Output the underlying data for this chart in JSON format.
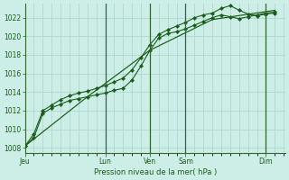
{
  "xlabel": "Pression niveau de la mer( hPa )",
  "background_color": "#cceee6",
  "grid_color": "#aad4cc",
  "line_color": "#1a5c1a",
  "text_color": "#1a5c1a",
  "spine_color": "#336633",
  "ylim": [
    1007.5,
    1023.5
  ],
  "yticks": [
    1008,
    1010,
    1012,
    1014,
    1016,
    1018,
    1020,
    1022
  ],
  "series1_x": [
    0,
    6,
    12,
    18,
    24,
    30,
    36,
    42,
    48,
    54,
    60,
    66,
    72,
    78,
    84,
    90,
    96,
    102,
    108,
    114,
    120,
    126,
    132,
    138,
    144,
    150,
    156,
    162,
    168
  ],
  "series1_y": [
    1008.2,
    1009.1,
    1011.7,
    1012.3,
    1012.7,
    1013.1,
    1013.3,
    1013.5,
    1013.7,
    1013.9,
    1014.2,
    1014.4,
    1015.3,
    1016.8,
    1018.5,
    1019.8,
    1020.3,
    1020.5,
    1020.8,
    1021.2,
    1021.6,
    1022.0,
    1022.3,
    1022.1,
    1021.9,
    1022.1,
    1022.3,
    1022.5,
    1022.6
  ],
  "series2_x": [
    0,
    6,
    12,
    18,
    24,
    30,
    36,
    42,
    48,
    54,
    60,
    66,
    72,
    78,
    84,
    90,
    96,
    102,
    108,
    114,
    120,
    126,
    132,
    138,
    144,
    150,
    156,
    162,
    168
  ],
  "series2_y": [
    1008.2,
    1009.5,
    1012.0,
    1012.6,
    1013.2,
    1013.6,
    1013.9,
    1014.1,
    1014.4,
    1014.7,
    1015.1,
    1015.5,
    1016.4,
    1017.7,
    1019.1,
    1020.2,
    1020.7,
    1021.1,
    1021.5,
    1022.0,
    1022.3,
    1022.5,
    1023.0,
    1023.3,
    1022.8,
    1022.4,
    1022.2,
    1022.4,
    1022.5
  ],
  "series3_x": [
    0,
    42,
    84,
    126,
    168
  ],
  "series3_y": [
    1008.2,
    1013.5,
    1018.5,
    1021.8,
    1022.8
  ],
  "vline_positions": [
    54,
    84,
    108,
    162
  ],
  "day_tick_x": [
    0,
    54,
    84,
    108,
    162
  ],
  "day_labels": [
    "Jeu",
    "Lun",
    "Ven",
    "Sam",
    "Dim"
  ],
  "xlim": [
    0,
    175
  ]
}
